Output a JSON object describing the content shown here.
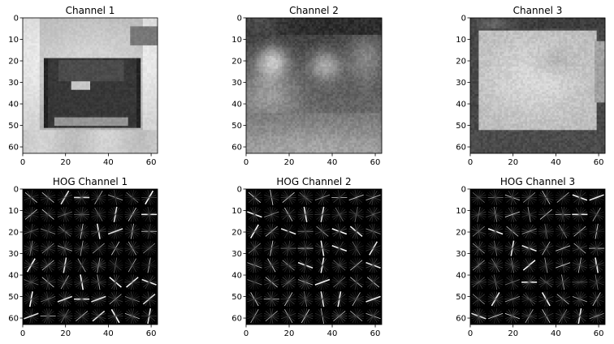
{
  "figure": {
    "description_free": true
  },
  "chart_data": [
    {
      "type": "heatmap",
      "title": "Channel 1",
      "render": "car-ch1",
      "xlim": [
        0,
        63
      ],
      "ylim": [
        63,
        0
      ],
      "xticks": [
        0,
        20,
        40,
        60
      ],
      "yticks": [
        0,
        10,
        20,
        30,
        40,
        50,
        60
      ],
      "cmap": "gray"
    },
    {
      "type": "heatmap",
      "title": "Channel 2",
      "render": "car-ch2",
      "xlim": [
        0,
        63
      ],
      "ylim": [
        63,
        0
      ],
      "xticks": [
        0,
        20,
        40,
        60
      ],
      "yticks": [
        0,
        10,
        20,
        30,
        40,
        50,
        60
      ],
      "cmap": "gray"
    },
    {
      "type": "heatmap",
      "title": "Channel 3",
      "render": "car-ch3",
      "xlim": [
        0,
        63
      ],
      "ylim": [
        63,
        0
      ],
      "xticks": [
        0,
        20,
        40,
        60
      ],
      "yticks": [
        0,
        10,
        20,
        30,
        40,
        50,
        60
      ],
      "cmap": "gray"
    },
    {
      "type": "heatmap",
      "title": "HOG Channel 1",
      "render": "hog",
      "seed": 11,
      "xlim": [
        0,
        63
      ],
      "ylim": [
        63,
        0
      ],
      "xticks": [
        0,
        20,
        40,
        60
      ],
      "yticks": [
        0,
        10,
        20,
        30,
        40,
        50,
        60
      ],
      "cmap": "gray"
    },
    {
      "type": "heatmap",
      "title": "HOG Channel 2",
      "render": "hog",
      "seed": 23,
      "xlim": [
        0,
        63
      ],
      "ylim": [
        63,
        0
      ],
      "xticks": [
        0,
        20,
        40,
        60
      ],
      "yticks": [
        0,
        10,
        20,
        30,
        40,
        50,
        60
      ],
      "cmap": "gray"
    },
    {
      "type": "heatmap",
      "title": "HOG Channel 3",
      "render": "hog",
      "seed": 37,
      "xlim": [
        0,
        63
      ],
      "ylim": [
        63,
        0
      ],
      "xticks": [
        0,
        20,
        40,
        60
      ],
      "yticks": [
        0,
        10,
        20,
        30,
        40,
        50,
        60
      ],
      "cmap": "gray"
    }
  ]
}
